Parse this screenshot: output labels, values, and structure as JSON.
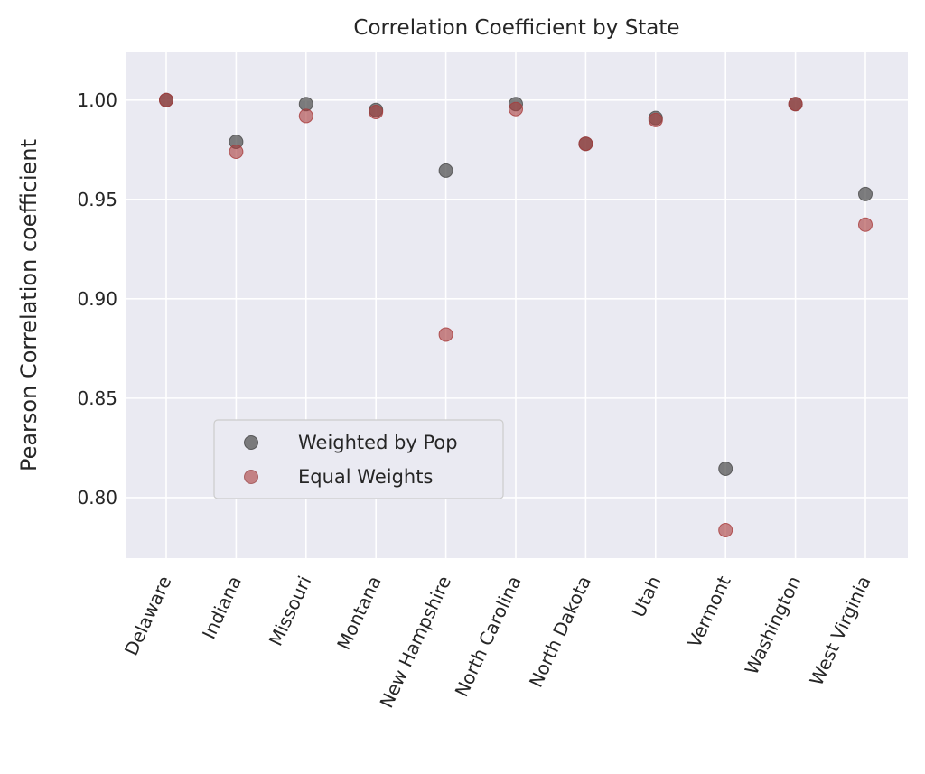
{
  "chart_data": {
    "type": "scatter",
    "title": "Correlation Coefficient by State",
    "xlabel": "",
    "ylabel": "Pearson Correlation coefficient",
    "categories": [
      "Delaware",
      "Indiana",
      "Missouri",
      "Montana",
      "New Hampshire",
      "North Carolina",
      "North Dakota",
      "Utah",
      "Vermont",
      "Washington",
      "West Virginia"
    ],
    "series": [
      {
        "name": "Weighted by Pop",
        "color": "#4a4a4a",
        "values": [
          1.0,
          0.979,
          0.998,
          0.995,
          0.9645,
          0.998,
          0.978,
          0.991,
          0.8145,
          0.998,
          0.9527
        ]
      },
      {
        "name": "Equal Weights",
        "color": "#a83a3a",
        "values": [
          1.0,
          0.974,
          0.992,
          0.994,
          0.882,
          0.9955,
          0.978,
          0.99,
          0.7836,
          0.998,
          0.9373
        ]
      }
    ],
    "ylim": [
      0.7695,
      1.024
    ],
    "yticks": [
      "0.80",
      "0.85",
      "0.90",
      "0.95",
      "1.00"
    ],
    "grid": true,
    "legend_position": "lower-left"
  }
}
